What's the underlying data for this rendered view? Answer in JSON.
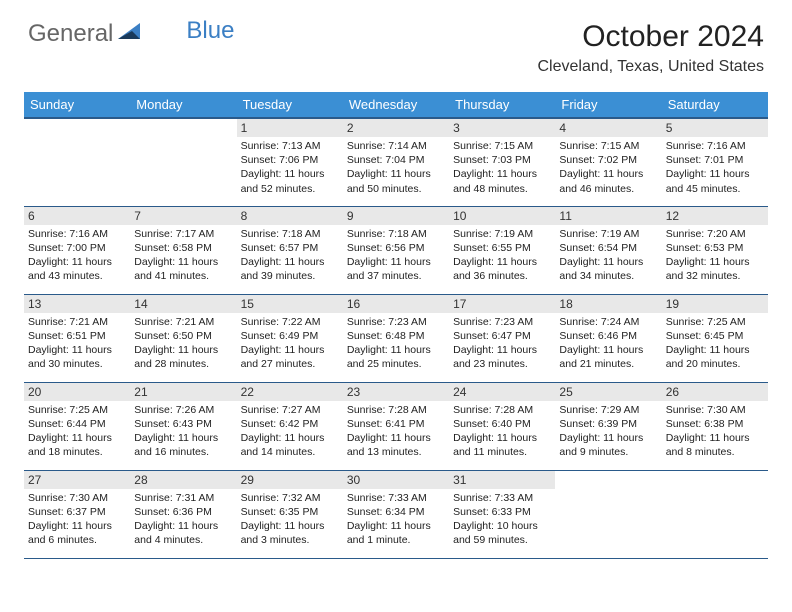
{
  "logo": {
    "text1": "General",
    "text2": "Blue"
  },
  "title": "October 2024",
  "location": "Cleveland, Texas, United States",
  "colors": {
    "header_bg": "#3b8fd4",
    "header_text": "#ffffff",
    "border": "#2a5a8a",
    "daynum_bg": "#e8e8e8",
    "logo_accent": "#3b7fc4",
    "logo_dark": "#1a3a5a"
  },
  "weekdays": [
    "Sunday",
    "Monday",
    "Tuesday",
    "Wednesday",
    "Thursday",
    "Friday",
    "Saturday"
  ],
  "weeks": [
    [
      null,
      null,
      {
        "n": "1",
        "sr": "7:13 AM",
        "ss": "7:06 PM",
        "dl": "11 hours and 52 minutes."
      },
      {
        "n": "2",
        "sr": "7:14 AM",
        "ss": "7:04 PM",
        "dl": "11 hours and 50 minutes."
      },
      {
        "n": "3",
        "sr": "7:15 AM",
        "ss": "7:03 PM",
        "dl": "11 hours and 48 minutes."
      },
      {
        "n": "4",
        "sr": "7:15 AM",
        "ss": "7:02 PM",
        "dl": "11 hours and 46 minutes."
      },
      {
        "n": "5",
        "sr": "7:16 AM",
        "ss": "7:01 PM",
        "dl": "11 hours and 45 minutes."
      }
    ],
    [
      {
        "n": "6",
        "sr": "7:16 AM",
        "ss": "7:00 PM",
        "dl": "11 hours and 43 minutes."
      },
      {
        "n": "7",
        "sr": "7:17 AM",
        "ss": "6:58 PM",
        "dl": "11 hours and 41 minutes."
      },
      {
        "n": "8",
        "sr": "7:18 AM",
        "ss": "6:57 PM",
        "dl": "11 hours and 39 minutes."
      },
      {
        "n": "9",
        "sr": "7:18 AM",
        "ss": "6:56 PM",
        "dl": "11 hours and 37 minutes."
      },
      {
        "n": "10",
        "sr": "7:19 AM",
        "ss": "6:55 PM",
        "dl": "11 hours and 36 minutes."
      },
      {
        "n": "11",
        "sr": "7:19 AM",
        "ss": "6:54 PM",
        "dl": "11 hours and 34 minutes."
      },
      {
        "n": "12",
        "sr": "7:20 AM",
        "ss": "6:53 PM",
        "dl": "11 hours and 32 minutes."
      }
    ],
    [
      {
        "n": "13",
        "sr": "7:21 AM",
        "ss": "6:51 PM",
        "dl": "11 hours and 30 minutes."
      },
      {
        "n": "14",
        "sr": "7:21 AM",
        "ss": "6:50 PM",
        "dl": "11 hours and 28 minutes."
      },
      {
        "n": "15",
        "sr": "7:22 AM",
        "ss": "6:49 PM",
        "dl": "11 hours and 27 minutes."
      },
      {
        "n": "16",
        "sr": "7:23 AM",
        "ss": "6:48 PM",
        "dl": "11 hours and 25 minutes."
      },
      {
        "n": "17",
        "sr": "7:23 AM",
        "ss": "6:47 PM",
        "dl": "11 hours and 23 minutes."
      },
      {
        "n": "18",
        "sr": "7:24 AM",
        "ss": "6:46 PM",
        "dl": "11 hours and 21 minutes."
      },
      {
        "n": "19",
        "sr": "7:25 AM",
        "ss": "6:45 PM",
        "dl": "11 hours and 20 minutes."
      }
    ],
    [
      {
        "n": "20",
        "sr": "7:25 AM",
        "ss": "6:44 PM",
        "dl": "11 hours and 18 minutes."
      },
      {
        "n": "21",
        "sr": "7:26 AM",
        "ss": "6:43 PM",
        "dl": "11 hours and 16 minutes."
      },
      {
        "n": "22",
        "sr": "7:27 AM",
        "ss": "6:42 PM",
        "dl": "11 hours and 14 minutes."
      },
      {
        "n": "23",
        "sr": "7:28 AM",
        "ss": "6:41 PM",
        "dl": "11 hours and 13 minutes."
      },
      {
        "n": "24",
        "sr": "7:28 AM",
        "ss": "6:40 PM",
        "dl": "11 hours and 11 minutes."
      },
      {
        "n": "25",
        "sr": "7:29 AM",
        "ss": "6:39 PM",
        "dl": "11 hours and 9 minutes."
      },
      {
        "n": "26",
        "sr": "7:30 AM",
        "ss": "6:38 PM",
        "dl": "11 hours and 8 minutes."
      }
    ],
    [
      {
        "n": "27",
        "sr": "7:30 AM",
        "ss": "6:37 PM",
        "dl": "11 hours and 6 minutes."
      },
      {
        "n": "28",
        "sr": "7:31 AM",
        "ss": "6:36 PM",
        "dl": "11 hours and 4 minutes."
      },
      {
        "n": "29",
        "sr": "7:32 AM",
        "ss": "6:35 PM",
        "dl": "11 hours and 3 minutes."
      },
      {
        "n": "30",
        "sr": "7:33 AM",
        "ss": "6:34 PM",
        "dl": "11 hours and 1 minute."
      },
      {
        "n": "31",
        "sr": "7:33 AM",
        "ss": "6:33 PM",
        "dl": "10 hours and 59 minutes."
      },
      null,
      null
    ]
  ],
  "labels": {
    "sunrise": "Sunrise:",
    "sunset": "Sunset:",
    "daylight": "Daylight:"
  }
}
